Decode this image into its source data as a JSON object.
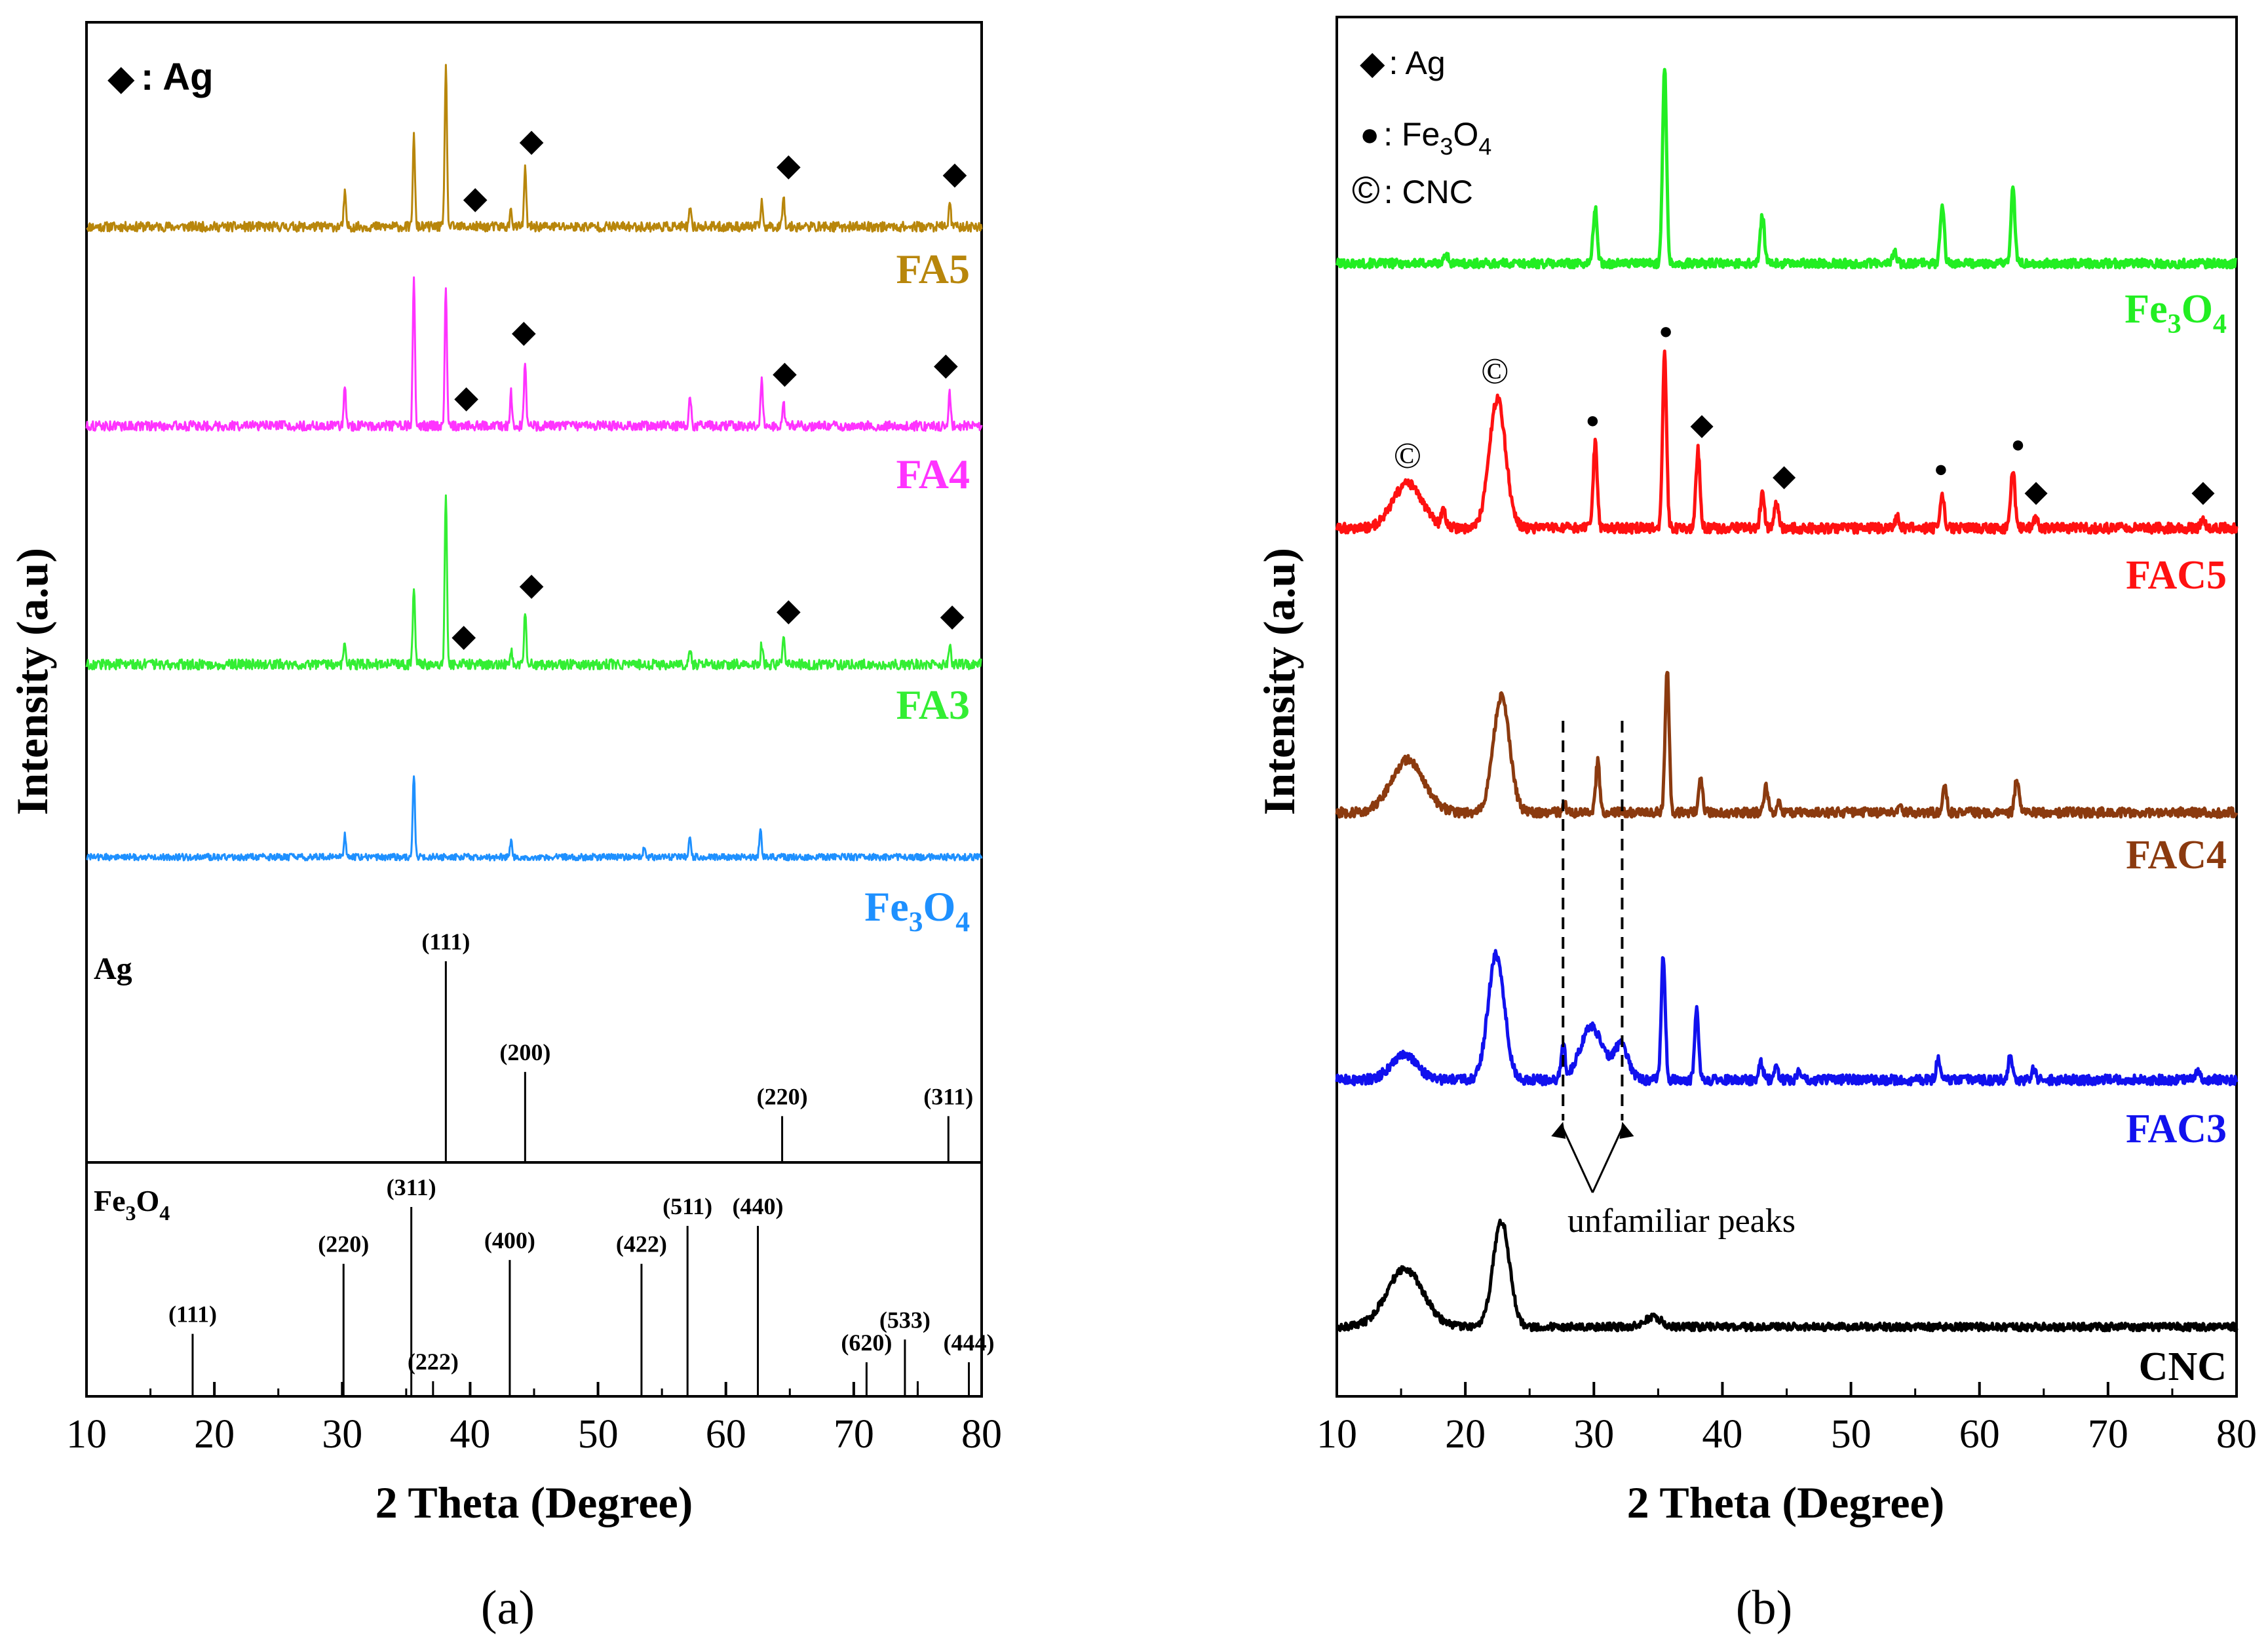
{
  "chart_data": [
    {
      "panel": "a",
      "type": "line",
      "caption": "(a)",
      "xlabel": "2 Theta (Degree)",
      "ylabel": "Intensity (a.u)",
      "xlim": [
        10,
        80
      ],
      "x_ticks": [
        10,
        20,
        30,
        40,
        50,
        60,
        70,
        80
      ],
      "grid": false,
      "legend": {
        "symbol": "◆",
        "text": ": Ag"
      },
      "series": [
        {
          "name": "FA5",
          "color": "#b8860b",
          "peaks": [
            [
              30.2,
              0.2
            ],
            [
              35.6,
              0.55
            ],
            [
              38.1,
              1.0
            ],
            [
              43.2,
              0.1
            ],
            [
              44.3,
              0.35
            ],
            [
              57.2,
              0.1
            ],
            [
              62.8,
              0.15
            ],
            [
              64.5,
              0.2
            ],
            [
              77.5,
              0.15
            ]
          ],
          "markers": [
            [
              40.4,
              "◆"
            ],
            [
              44.8,
              "◆"
            ],
            [
              64.9,
              "◆"
            ],
            [
              77.9,
              "◆"
            ]
          ]
        },
        {
          "name": "FA4",
          "color": "#ff33ff",
          "peaks": [
            [
              30.2,
              0.25
            ],
            [
              35.6,
              0.9
            ],
            [
              38.1,
              0.85
            ],
            [
              43.2,
              0.2
            ],
            [
              44.3,
              0.4
            ],
            [
              57.2,
              0.18
            ],
            [
              62.8,
              0.3
            ],
            [
              64.5,
              0.15
            ],
            [
              77.5,
              0.2
            ]
          ],
          "markers": [
            [
              39.7,
              "◆"
            ],
            [
              44.2,
              "◆"
            ],
            [
              64.6,
              "◆"
            ],
            [
              77.2,
              "◆"
            ]
          ]
        },
        {
          "name": "FA3",
          "color": "#33ee33",
          "peaks": [
            [
              30.2,
              0.12
            ],
            [
              35.6,
              0.45
            ],
            [
              38.1,
              1.0
            ],
            [
              43.2,
              0.08
            ],
            [
              44.3,
              0.3
            ],
            [
              57.2,
              0.08
            ],
            [
              62.8,
              0.12
            ],
            [
              64.5,
              0.15
            ],
            [
              77.5,
              0.12
            ]
          ],
          "markers": [
            [
              39.5,
              "◆"
            ],
            [
              44.8,
              "◆"
            ],
            [
              64.9,
              "◆"
            ],
            [
              77.7,
              "◆"
            ]
          ]
        },
        {
          "name": "Fe3O4",
          "color": "#1e90ff",
          "peaks": [
            [
              30.2,
              0.2
            ],
            [
              35.6,
              0.75
            ],
            [
              43.2,
              0.15
            ],
            [
              53.6,
              0.08
            ],
            [
              57.2,
              0.2
            ],
            [
              62.7,
              0.25
            ]
          ],
          "markers": []
        }
      ],
      "reference_ag": {
        "label": "Ag",
        "lines": [
          {
            "x": 38.1,
            "label": "(111)",
            "h": 1.0
          },
          {
            "x": 44.3,
            "label": "(200)",
            "h": 0.45
          },
          {
            "x": 64.4,
            "label": "(220)",
            "h": 0.23
          },
          {
            "x": 77.4,
            "label": "(311)",
            "h": 0.23
          }
        ]
      },
      "reference_fe3o4": {
        "label_main": "Fe",
        "label_sub1": "3",
        "label_mid": "O",
        "label_sub2": "4",
        "lines": [
          {
            "x": 18.3,
            "label": "(111)",
            "h": 0.33
          },
          {
            "x": 30.1,
            "label": "(220)",
            "h": 0.7
          },
          {
            "x": 35.4,
            "label": "(311)",
            "h": 1.0
          },
          {
            "x": 37.1,
            "label": "(222)",
            "h": 0.08
          },
          {
            "x": 43.1,
            "label": "(400)",
            "h": 0.72
          },
          {
            "x": 53.4,
            "label": "(422)",
            "h": 0.7
          },
          {
            "x": 57.0,
            "label": "(511)",
            "h": 0.9
          },
          {
            "x": 62.5,
            "label": "(440)",
            "h": 0.9
          },
          {
            "x": 71.0,
            "label": "(620)",
            "h": 0.18
          },
          {
            "x": 74.0,
            "label": "(533)",
            "h": 0.3
          },
          {
            "x": 75.0,
            "label": "",
            "h": 0.08
          },
          {
            "x": 79.0,
            "label": "(444)",
            "h": 0.18
          }
        ]
      }
    },
    {
      "panel": "b",
      "type": "line",
      "caption": "(b)",
      "xlabel": "2 Theta (Degree)",
      "ylabel": "Intensity (a.u)",
      "xlim": [
        10,
        80
      ],
      "x_ticks": [
        10,
        20,
        30,
        40,
        50,
        60,
        70,
        80
      ],
      "grid": false,
      "legend": [
        {
          "symbol": "◆",
          "text": ": Ag"
        },
        {
          "symbol": "●",
          "text": ": Fe",
          "sub": "3",
          "text2": "O",
          "sub2": "4"
        },
        {
          "symbol": "©",
          "text": ": CNC"
        }
      ],
      "annotation": "unfamiliar peaks",
      "dashed_lines_x": [
        27.6,
        32.2
      ],
      "series": [
        {
          "name": "Fe3O4",
          "color": "#22ee22",
          "broad": [],
          "peaks": [
            [
              18.5,
              0.05
            ],
            [
              30.1,
              0.28
            ],
            [
              35.5,
              1.0
            ],
            [
              43.1,
              0.25
            ],
            [
              53.4,
              0.06
            ],
            [
              57.1,
              0.3
            ],
            [
              62.6,
              0.38
            ]
          ],
          "markers": []
        },
        {
          "name": "FAC5",
          "color": "#ff1111",
          "broad": [
            [
              15.5,
              0.2,
              1.6
            ],
            [
              22.5,
              0.58,
              0.9
            ]
          ],
          "peaks": [
            [
              18.3,
              0.08
            ],
            [
              30.1,
              0.38
            ],
            [
              35.5,
              0.78
            ],
            [
              38.1,
              0.35
            ],
            [
              43.1,
              0.15
            ],
            [
              44.2,
              0.12
            ],
            [
              53.6,
              0.05
            ],
            [
              57.1,
              0.16
            ],
            [
              62.6,
              0.27
            ],
            [
              64.4,
              0.05
            ],
            [
              77.4,
              0.05
            ]
          ],
          "markers": [
            [
              15.5,
              "©"
            ],
            [
              22.3,
              "©"
            ],
            [
              29.9,
              "●"
            ],
            [
              35.6,
              "●"
            ],
            [
              38.4,
              "◆"
            ],
            [
              44.8,
              "◆"
            ],
            [
              57.0,
              "●"
            ],
            [
              63.0,
              "●"
            ],
            [
              64.4,
              "◆"
            ],
            [
              77.4,
              "◆"
            ]
          ]
        },
        {
          "name": "FAC4",
          "color": "#8b3a0f",
          "broad": [
            [
              15.5,
              0.25,
              1.8
            ],
            [
              22.8,
              0.55,
              0.9
            ]
          ],
          "peaks": [
            [
              27.7,
              0.04
            ],
            [
              30.3,
              0.24
            ],
            [
              35.7,
              0.68
            ],
            [
              38.3,
              0.15
            ],
            [
              43.4,
              0.12
            ],
            [
              44.4,
              0.06
            ],
            [
              53.8,
              0.04
            ],
            [
              57.3,
              0.12
            ],
            [
              62.9,
              0.16
            ]
          ],
          "markers": []
        },
        {
          "name": "FAC3",
          "color": "#1111ee",
          "broad": [
            [
              15.2,
              0.12,
              1.4
            ],
            [
              22.4,
              0.58,
              0.9
            ],
            [
              29.8,
              0.25,
              1.2
            ],
            [
              32.1,
              0.16,
              0.8
            ]
          ],
          "peaks": [
            [
              27.6,
              0.16
            ],
            [
              35.4,
              0.58
            ],
            [
              38.0,
              0.33
            ],
            [
              43.0,
              0.08
            ],
            [
              44.2,
              0.06
            ],
            [
              46.0,
              0.04
            ],
            [
              56.8,
              0.1
            ],
            [
              62.4,
              0.12
            ],
            [
              64.2,
              0.05
            ],
            [
              77.0,
              0.04
            ]
          ],
          "markers": []
        },
        {
          "name": "CNC",
          "color": "#000000",
          "broad": [
            [
              15.3,
              0.34,
              2.0
            ],
            [
              22.8,
              0.62,
              0.9
            ],
            [
              34.6,
              0.06,
              0.9
            ]
          ],
          "peaks": [],
          "markers": []
        }
      ]
    }
  ]
}
